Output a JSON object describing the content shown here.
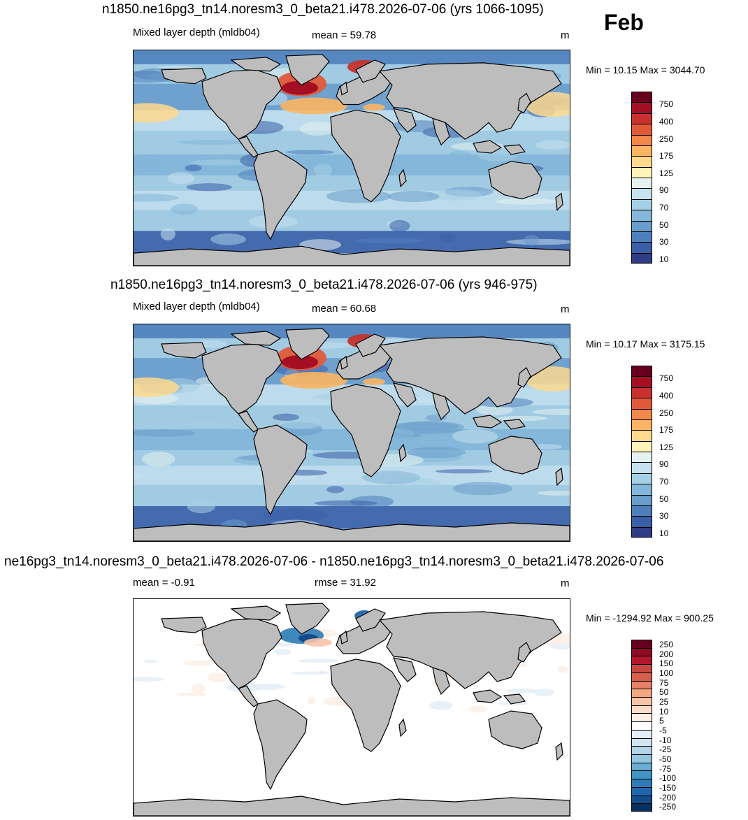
{
  "month": "Feb",
  "panels": [
    {
      "title": "n1850.ne16pg3_tn14.noresm3_0_beta21.i478.2026-07-06 (yrs 1066-1095)",
      "left": "Mixed layer depth (mldb04)",
      "center": "mean =  59.78",
      "units": "m",
      "minmax": "Min =  10.15 Max = 3044.70",
      "colorbar": {
        "labels": [
          "750",
          "400",
          "250",
          "175",
          "125",
          "90",
          "70",
          "50",
          "30",
          "10"
        ],
        "colors": [
          "#67001f",
          "#a50f24",
          "#c8312d",
          "#e05a3a",
          "#f2894a",
          "#fbb462",
          "#fed98e",
          "#fff3ba",
          "#e6f2f0",
          "#c6e2ee",
          "#a5cfe4",
          "#84b7d9",
          "#6a9dcb",
          "#4f7fbb",
          "#3a5ea7",
          "#2f3c86"
        ]
      }
    },
    {
      "title": "n1850.ne16pg3_tn14.noresm3_0_beta21.i478.2026-07-06 (yrs 946-975)",
      "left": "Mixed layer depth (mldb04)",
      "center": "mean =  60.68",
      "units": "m",
      "minmax": "Min =  10.17 Max = 3175.15",
      "colorbar": {
        "labels": [
          "750",
          "400",
          "250",
          "175",
          "125",
          "90",
          "70",
          "50",
          "30",
          "10"
        ],
        "colors": [
          "#67001f",
          "#a50f24",
          "#c8312d",
          "#e05a3a",
          "#f2894a",
          "#fbb462",
          "#fed98e",
          "#fff3ba",
          "#e6f2f0",
          "#c6e2ee",
          "#a5cfe4",
          "#84b7d9",
          "#6a9dcb",
          "#4f7fbb",
          "#3a5ea7",
          "#2f3c86"
        ]
      }
    },
    {
      "title": "ne16pg3_tn14.noresm3_0_beta21.i478.2026-07-06 - n1850.ne16pg3_tn14.noresm3_0_beta21.i478.2026-07-06",
      "left": "mean =  -0.91",
      "center": "rmse =  31.92",
      "units": "m",
      "minmax": "Min = -1294.92 Max = 900.25",
      "colorbar": {
        "labels": [
          "250",
          "200",
          "150",
          "100",
          "75",
          "50",
          "25",
          "10",
          "5",
          "-5",
          "-10",
          "-25",
          "-50",
          "-75",
          "-100",
          "-150",
          "-200",
          "-250"
        ],
        "colors": [
          "#67001f",
          "#8e0b24",
          "#b2182b",
          "#c94741",
          "#d6604d",
          "#e58267",
          "#f4a582",
          "#f8c4a8",
          "#fddbc7",
          "#fcefe5",
          "#ffffff",
          "#e4eef6",
          "#d1e5f0",
          "#b3d4e8",
          "#92c5de",
          "#6aaccf",
          "#4393c3",
          "#2c7bb6",
          "#2166ac",
          "#124c8a",
          "#053061"
        ]
      }
    }
  ]
}
